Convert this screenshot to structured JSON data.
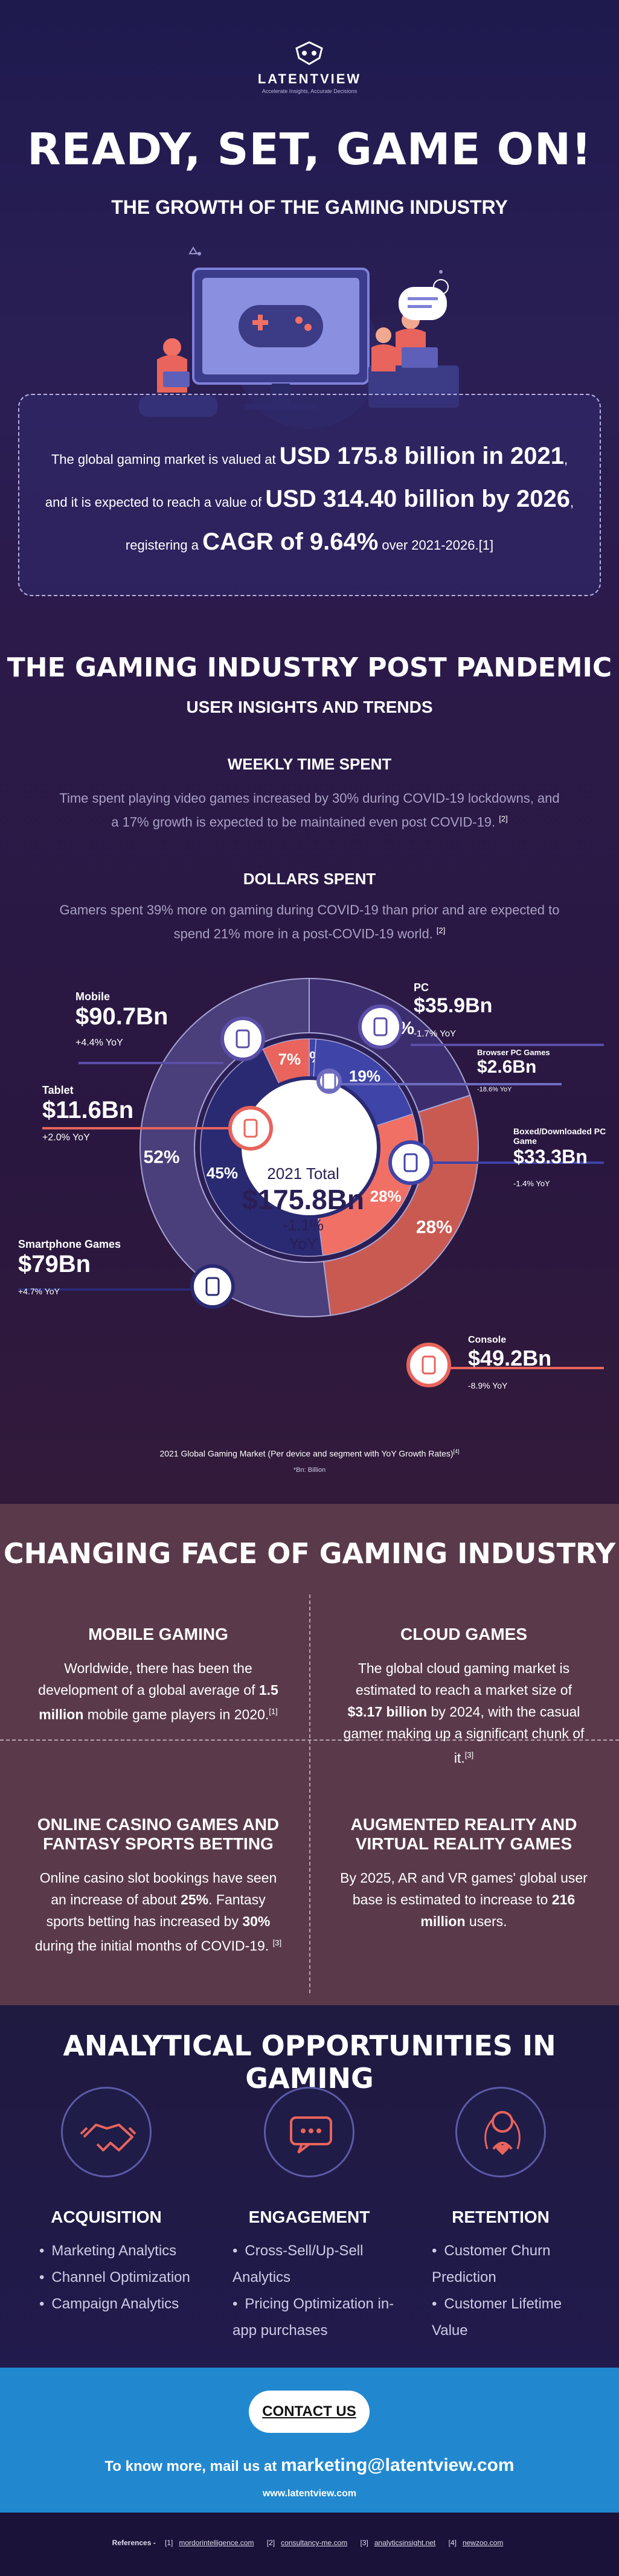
{
  "brand": {
    "name": "LATENTVIEW",
    "tagline": "Accelerate Insights, Accurate Decisions"
  },
  "hero": {
    "title": "READY, SET, GAME ON!",
    "subtitle": "THE GROWTH OF THE GAMING INDUSTRY",
    "stat": {
      "p1": "The global gaming market is valued at ",
      "v1": "USD 175.8 billion in 2021",
      "p2": ", and it is expected to reach a value of ",
      "v2": "USD 314.40 billion by 2026",
      "p3": ", registering a ",
      "v3": "CAGR of 9.64%",
      "p4": " over 2021-2026.",
      "ref": "[1]"
    }
  },
  "post": {
    "title": "THE GAMING INDUSTRY POST PANDEMIC",
    "subtitle": "USER INSIGHTS AND TRENDS",
    "weekly_title": "WEEKLY TIME SPENT",
    "weekly_text": "Time spent playing video games increased by 30% during COVID-19 lockdowns, and a 17% growth is expected to be maintained even post COVID-19.",
    "weekly_ref": "[2]",
    "dollars_title": "DOLLARS SPENT",
    "dollars_text": "Gamers spent 39% more on gaming during COVID-19 than prior and are expected to spend 21% more in a post-COVID-19 world.",
    "dollars_ref": "[2]"
  },
  "chart_data": {
    "type": "pie",
    "center": {
      "label": "2021 Total",
      "value": "$175.8Bn",
      "change": "-1.1%",
      "change_label": "YoY"
    },
    "outer_ring": {
      "segments": [
        {
          "name": "PC",
          "percent": 20
        },
        {
          "name": "Console",
          "percent": 28
        },
        {
          "name": "Mobile",
          "percent": 52
        }
      ],
      "labels": [
        "20%",
        "28%",
        "52%"
      ]
    },
    "inner_ring": {
      "segments": [
        {
          "name": "Browser PC Games",
          "percent": 1
        },
        {
          "name": "Boxed/Downloaded PC Game",
          "percent": 19
        },
        {
          "name": "Console",
          "percent": 28
        },
        {
          "name": "Smartphone Games",
          "percent": 45
        },
        {
          "name": "Tablet",
          "percent": 7
        }
      ],
      "labels": [
        "1%",
        "19%",
        "28%",
        "45%",
        "7%"
      ]
    },
    "callouts": [
      {
        "name": "Mobile",
        "value": "$90.7Bn",
        "yoy": "+4.4% YoY"
      },
      {
        "name": "Tablet",
        "value": "$11.6Bn",
        "yoy": "+2.0% YoY"
      },
      {
        "name": "Smartphone Games",
        "value": "$79Bn",
        "yoy": "+4.7% YoY"
      },
      {
        "name": "PC",
        "value": "$35.9Bn",
        "yoy": "-1.7% YoY"
      },
      {
        "name": "Browser PC Games",
        "value": "$2.6Bn",
        "yoy": "-18.6% YoY"
      },
      {
        "name": "Boxed/Downloaded PC Game",
        "value": "$33.3Bn",
        "yoy": "-1.4% YoY"
      },
      {
        "name": "Console",
        "value": "$49.2Bn",
        "yoy": "-8.9% YoY"
      }
    ],
    "caption": "2021 Global Gaming Market (Per device and segment with YoY Growth Rates)",
    "caption_ref": "[4]",
    "note": "*Bn: Billion",
    "colors": {
      "mobile": "#4a3f7a",
      "pc": "#3c2e6e",
      "console": "#c95a52",
      "inner_mobile": "#2a2a72",
      "inner_pc": "#3e44a8",
      "inner_console": "#f07065",
      "accent": "#e8645c"
    }
  },
  "face": {
    "title": "CHANGING FACE OF GAMING INDUSTRY",
    "mobile": {
      "title": "MOBILE GAMING",
      "p1": "Worldwide, there has been the development of a global average of ",
      "b1": "1.5 million",
      "p2": " mobile game players in 2020.",
      "ref": "[1]"
    },
    "cloud": {
      "title": "CLOUD GAMES",
      "p1": "The global cloud gaming market is estimated to reach a market size of ",
      "b1": "$3.17 billion",
      "p2": " by 2024, with the casual gamer making up a significant chunk of it.",
      "ref": "[3]"
    },
    "casino": {
      "title1": "ONLINE CASINO GAMES AND",
      "title2": "FANTASY SPORTS BETTING",
      "p1": "Online casino slot bookings have seen an increase of about ",
      "b1": "25%",
      "p2": ". Fantasy sports betting has increased by ",
      "b2": "30%",
      "p3": " during the initial months of COVID-19.",
      "ref": "[3]"
    },
    "ar": {
      "title1": "AUGMENTED REALITY AND",
      "title2": "VIRTUAL REALITY GAMES",
      "p1": "By 2025, AR and VR games' global user base is estimated to increase to ",
      "b1": "216 million",
      "p2": " users."
    }
  },
  "analytical": {
    "title": "ANALYTICAL OPPORTUNITIES IN GAMING",
    "columns": [
      {
        "title": "ACQUISITION",
        "icon": "handshake-icon",
        "items": [
          "Marketing Analytics",
          "Channel Optimization",
          "Campaign Analytics"
        ]
      },
      {
        "title": "ENGAGEMENT",
        "icon": "chat-bubble-icon",
        "items": [
          "Cross-Sell/Up-Sell Analytics",
          "Pricing Optimization in-app purchases"
        ]
      },
      {
        "title": "RETENTION",
        "icon": "user-heart-icon",
        "items": [
          "Customer Churn Prediction",
          "Customer Lifetime Value"
        ]
      }
    ]
  },
  "contact": {
    "button": "CONTACT US",
    "mail_prefix": "To know more, mail us at ",
    "mail": "marketing@latentview.com",
    "website": "www.latentview.com"
  },
  "references": {
    "label": "References -",
    "items": [
      {
        "n": "[1]",
        "site": "mordorintelligence.com"
      },
      {
        "n": "[2]",
        "site": "consultancy-me.com"
      },
      {
        "n": "[3]",
        "site": "analyticsinsight.net"
      },
      {
        "n": "[4]",
        "site": "newzoo.com"
      }
    ]
  }
}
